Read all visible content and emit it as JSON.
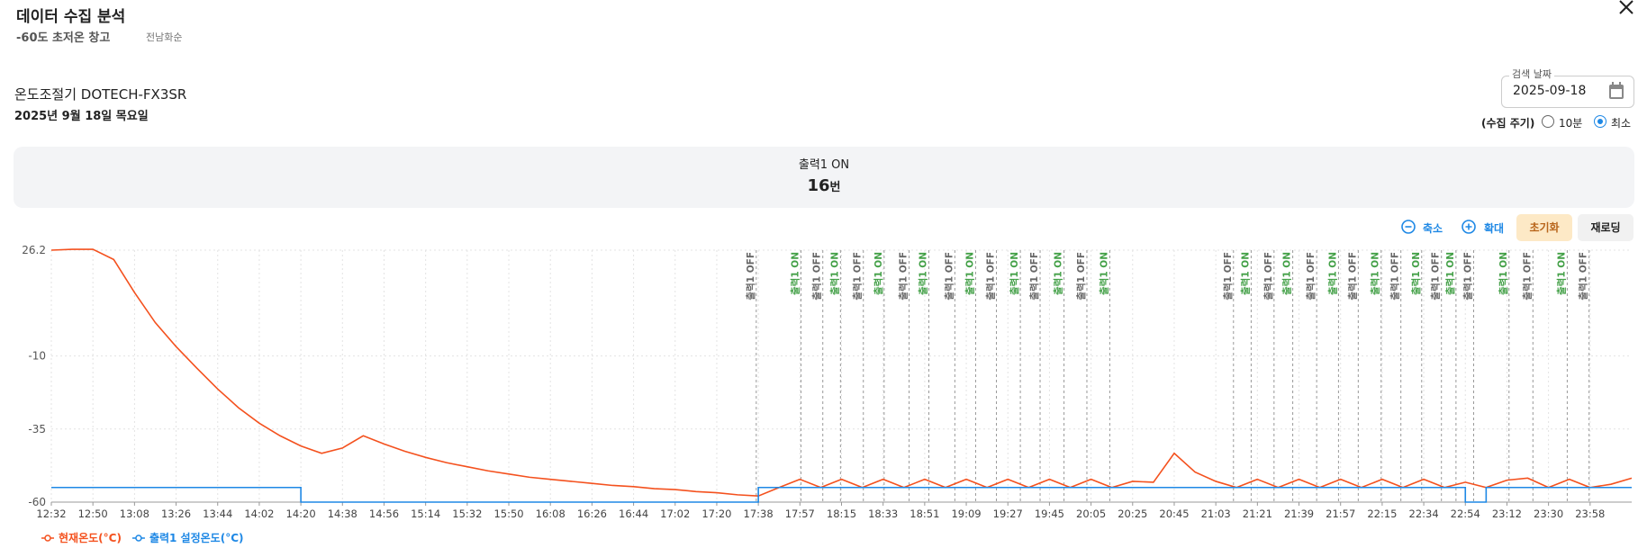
{
  "header": {
    "title": "데이터 수집 분석",
    "subtitle": "-60도 초저온 창고",
    "location": "전남화순",
    "device": "온도조절기 DOTECH-FX3SR",
    "date_text": "2025년 9월 18일 목요일"
  },
  "controls": {
    "date_label": "검색 날짜",
    "date_value": "2025-09-18",
    "period_label": "(수집 주기)",
    "options": [
      "10분",
      "최소"
    ],
    "selected": 1
  },
  "summary": {
    "label": "출력1 ON",
    "count": "16",
    "unit": "번"
  },
  "toolbar": {
    "zoom_out": "축소",
    "zoom_in": "확대",
    "reset": "초기화",
    "reload": "재로딩"
  },
  "chart_data": {
    "type": "line",
    "grid": true,
    "categories": [
      "12:32",
      null,
      "12:50",
      null,
      "13:08",
      null,
      "13:26",
      null,
      "13:44",
      null,
      "14:02",
      null,
      "14:20",
      null,
      "14:38",
      null,
      "14:56",
      null,
      "15:14",
      null,
      "15:32",
      null,
      "15:50",
      null,
      "16:08",
      null,
      "16:26",
      null,
      "16:44",
      null,
      "17:02",
      null,
      "17:20",
      null,
      "17:38",
      null,
      "17:57",
      null,
      "18:15",
      null,
      "18:33",
      null,
      "18:51",
      null,
      "19:09",
      null,
      "19:27",
      null,
      "19:45",
      null,
      "20:05",
      null,
      "20:25",
      null,
      "20:45",
      null,
      "21:03",
      null,
      "21:21",
      null,
      "21:39",
      null,
      "21:57",
      null,
      "22:15",
      null,
      "22:34",
      null,
      "22:54",
      null,
      "23:12",
      null,
      "23:30",
      null,
      "23:58",
      null,
      null
    ],
    "ylim": [
      -60,
      26.2
    ],
    "yticks": [
      -60,
      -35,
      -10,
      26.2
    ],
    "series": [
      {
        "name": "현재온도(°C)",
        "color": "#f4511e",
        "values": [
          26.2,
          26.5,
          26.5,
          23.0,
          11.7,
          1.4,
          -6.8,
          -14.2,
          -21.3,
          -27.7,
          -33,
          -37.3,
          -40.8,
          -43.3,
          -41.5,
          -37.3,
          -40.1,
          -42.6,
          -44.7,
          -46.5,
          -47.9,
          -49.3,
          -50.4,
          -51.5,
          -52.2,
          -52.9,
          -53.6,
          -54.3,
          -54.7,
          -55.4,
          -55.7,
          -56.4,
          -56.8,
          -57.5,
          -57.9,
          -55,
          -52.2,
          -55,
          -52.2,
          -55,
          -52.2,
          -55,
          -52.2,
          -55,
          -52.2,
          -55,
          -52.2,
          -55,
          -52.2,
          -55,
          -52.2,
          -55,
          -52.9,
          -53.2,
          -43.3,
          -49.7,
          -52.9,
          -55,
          -52.2,
          -55,
          -52.2,
          -55,
          -52.2,
          -55,
          -52.2,
          -55,
          -52.2,
          -55,
          -53.2,
          -55,
          -52.5,
          -51.8,
          -55,
          -52.2,
          -55,
          -53.9,
          -51.8
        ]
      },
      {
        "name": "출력1 설정온도(°C)",
        "color": "#1e88e5",
        "step": true,
        "values": [
          -55,
          -55,
          -55,
          -55,
          -55,
          -55,
          -55,
          -55,
          -55,
          -55,
          -55,
          -55,
          -60,
          -60,
          -60,
          -60,
          -60,
          -60,
          -60,
          -60,
          -60,
          -60,
          -60,
          -60,
          -60,
          -60,
          -60,
          -60,
          -60,
          -60,
          -60,
          -60,
          -60,
          -60,
          -55,
          -55,
          -55,
          -55,
          -55,
          -55,
          -55,
          -55,
          -55,
          -55,
          -55,
          -55,
          -55,
          -55,
          -55,
          -55,
          -55,
          -55,
          -55,
          -55,
          -55,
          -55,
          -55,
          -55,
          -55,
          -55,
          -55,
          -55,
          -55,
          -55,
          -55,
          -55,
          -55,
          -55,
          -60,
          -55,
          -55,
          -55,
          -55,
          -55,
          -55,
          -55,
          -55
        ]
      }
    ],
    "annotations": [
      {
        "x": 33.9,
        "label": "출력1 OFF",
        "color": "#666666"
      },
      {
        "x": 36.05,
        "label": "출력1 ON",
        "color": "#43a047"
      },
      {
        "x": 37.1,
        "label": "출력1 OFF",
        "color": "#666666"
      },
      {
        "x": 37.95,
        "label": "출력1 ON",
        "color": "#43a047"
      },
      {
        "x": 39.05,
        "label": "출력1 OFF",
        "color": "#666666"
      },
      {
        "x": 40.05,
        "label": "출력1 ON",
        "color": "#43a047"
      },
      {
        "x": 41.25,
        "label": "출력1 OFF",
        "color": "#666666"
      },
      {
        "x": 42.2,
        "label": "출력1 ON",
        "color": "#43a047"
      },
      {
        "x": 43.45,
        "label": "출력1 OFF",
        "color": "#666666"
      },
      {
        "x": 44.45,
        "label": "출력1 ON",
        "color": "#43a047"
      },
      {
        "x": 45.45,
        "label": "출력1 OFF",
        "color": "#666666"
      },
      {
        "x": 46.6,
        "label": "출력1 ON",
        "color": "#43a047"
      },
      {
        "x": 47.55,
        "label": "출력1 OFF",
        "color": "#666666"
      },
      {
        "x": 48.7,
        "label": "출력1 ON",
        "color": "#43a047"
      },
      {
        "x": 49.8,
        "label": "출력1 OFF",
        "color": "#666666"
      },
      {
        "x": 50.9,
        "label": "출력1 ON",
        "color": "#43a047"
      },
      {
        "x": 56.85,
        "label": "출력1 OFF",
        "color": "#666666"
      },
      {
        "x": 57.7,
        "label": "출력1 ON",
        "color": "#43a047"
      },
      {
        "x": 58.8,
        "label": "출력1 OFF",
        "color": "#666666"
      },
      {
        "x": 59.7,
        "label": "출력1 ON",
        "color": "#43a047"
      },
      {
        "x": 60.85,
        "label": "출력1 OFF",
        "color": "#666666"
      },
      {
        "x": 61.9,
        "label": "출력1 ON",
        "color": "#43a047"
      },
      {
        "x": 62.85,
        "label": "출력1 OFF",
        "color": "#666666"
      },
      {
        "x": 63.95,
        "label": "출력1 ON",
        "color": "#43a047"
      },
      {
        "x": 64.9,
        "label": "출력1 OFF",
        "color": "#666666"
      },
      {
        "x": 65.9,
        "label": "출력1 ON",
        "color": "#43a047"
      },
      {
        "x": 66.85,
        "label": "출력1 OFF",
        "color": "#666666"
      },
      {
        "x": 67.55,
        "label": "출력1 ON",
        "color": "#43a047"
      },
      {
        "x": 68.4,
        "label": "출력1 OFF",
        "color": "#666666"
      },
      {
        "x": 70.1,
        "label": "출력1 ON",
        "color": "#43a047"
      },
      {
        "x": 71.25,
        "label": "출력1 OFF",
        "color": "#666666"
      },
      {
        "x": 72.9,
        "label": "출력1 ON",
        "color": "#43a047"
      },
      {
        "x": 73.95,
        "label": "출력1 OFF",
        "color": "#666666"
      }
    ]
  }
}
